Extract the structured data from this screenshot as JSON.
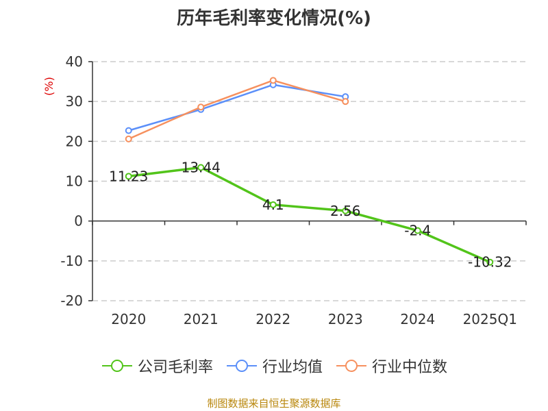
{
  "chart_data": {
    "type": "line",
    "title": "历年毛利率变化情况(%)",
    "ylabel": "(%)",
    "categories": [
      "2020",
      "2021",
      "2022",
      "2023",
      "2024",
      "2025Q1"
    ],
    "ylim": [
      -20,
      40
    ],
    "yticks": [
      40,
      30,
      20,
      10,
      0,
      -10,
      -20
    ],
    "grid": true,
    "legend_position": "bottom",
    "series": [
      {
        "name": "公司毛利率",
        "color": "#52c41a",
        "values": [
          11.23,
          13.44,
          4.1,
          2.56,
          -2.4,
          -10.32
        ],
        "labels": [
          "11.23",
          "13.44",
          "4.1",
          "2.56",
          "-2.4",
          "-10.32"
        ]
      },
      {
        "name": "行业均值",
        "color": "#5b8ff9",
        "values": [
          22.7,
          28.0,
          34.2,
          31.2,
          null,
          null
        ]
      },
      {
        "name": "行业中位数",
        "color": "#f6905e",
        "values": [
          20.6,
          28.6,
          35.3,
          30.0,
          null,
          null
        ]
      }
    ]
  },
  "source_text": "制图数据来自恒生聚源数据库"
}
